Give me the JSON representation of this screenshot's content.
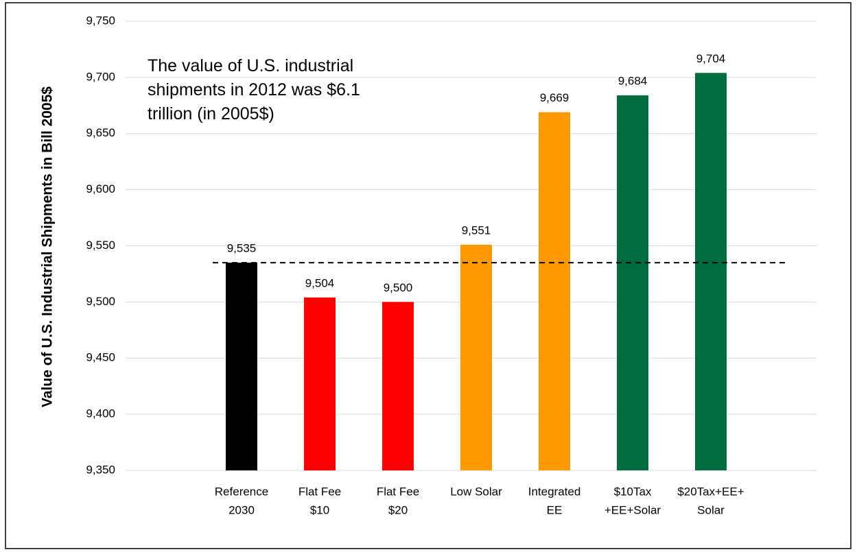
{
  "chart_data": {
    "type": "bar",
    "y_label": "Value of U.S. Industrial Shipments in Bill 2005$",
    "annotation": [
      "The value of U.S. industrial",
      "shipments in 2012 was $6.1",
      "trillion (in 2005$)"
    ],
    "categories": [
      [
        "Reference",
        "2030"
      ],
      [
        "Flat Fee",
        "$10"
      ],
      [
        "Flat Fee",
        "$20"
      ],
      [
        "Low Solar"
      ],
      [
        "Integrated",
        "EE"
      ],
      [
        "$10Tax",
        "+EE+Solar"
      ],
      [
        "$20Tax+EE+",
        "Solar"
      ]
    ],
    "values": [
      9535,
      9504,
      9500,
      9551,
      9669,
      9684,
      9704
    ],
    "value_labels": [
      "9,535",
      "9,504",
      "9,500",
      "9,551",
      "9,669",
      "9,684",
      "9,704"
    ],
    "colors": [
      "#000000",
      "#ff0000",
      "#ff0000",
      "#ff9900",
      "#ff9900",
      "#006b3f",
      "#006b3f"
    ],
    "reference_line": 9535,
    "ylim": [
      9350,
      9750
    ],
    "yticks": [
      {
        "value": 9350,
        "label": "9,350"
      },
      {
        "value": 9400,
        "label": "9,400"
      },
      {
        "value": 9450,
        "label": "9,450"
      },
      {
        "value": 9500,
        "label": "9,500"
      },
      {
        "value": 9550,
        "label": "9,550"
      },
      {
        "value": 9600,
        "label": "9,600"
      },
      {
        "value": 9650,
        "label": "9,650"
      },
      {
        "value": 9700,
        "label": "9,700"
      },
      {
        "value": 9750,
        "label": "9,750"
      }
    ],
    "grid": true
  }
}
